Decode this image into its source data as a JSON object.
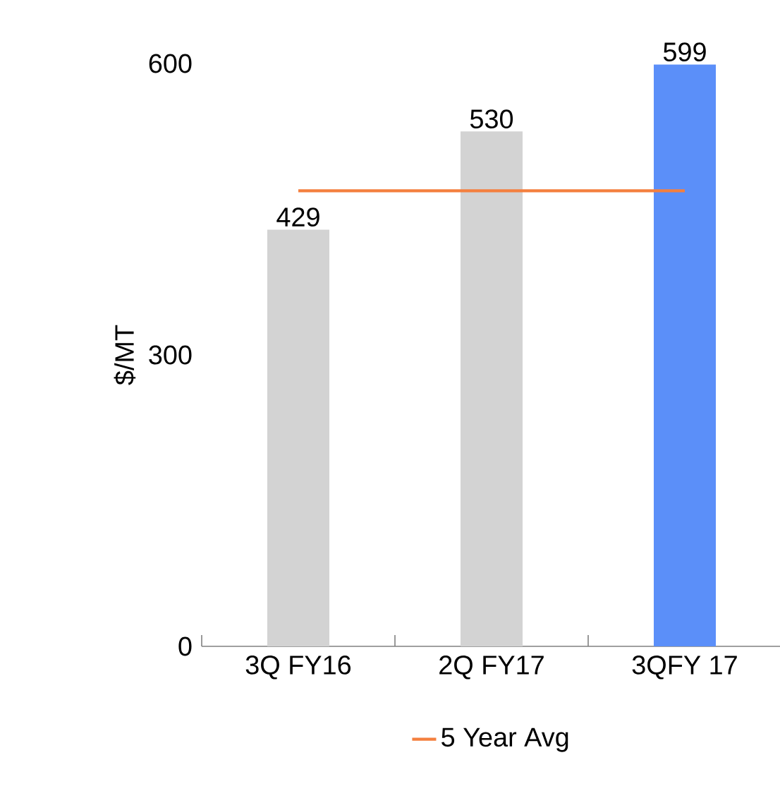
{
  "chart_data": {
    "type": "bar",
    "ylabel": "$/MT",
    "categories": [
      "3Q FY16",
      "2Q FY17",
      "3QFY 17"
    ],
    "series": [
      {
        "colors": [
          "#d3d3d3",
          "#d3d3d3",
          "#5b8ff9"
        ],
        "values": [
          429,
          530,
          599
        ],
        "value_labels": [
          "429",
          "530",
          "599"
        ]
      },
      {
        "type": "line",
        "name": "5 Year Avg",
        "color": "#f47f3e",
        "values": [
          469,
          469,
          469
        ]
      }
    ],
    "ylim": [
      0,
      600
    ],
    "yticks": [
      0,
      300,
      600
    ],
    "legend": "bottom",
    "marker": "none"
  }
}
